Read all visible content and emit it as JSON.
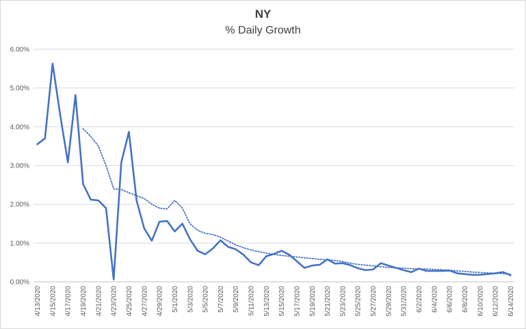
{
  "chart_data": {
    "type": "line",
    "title": "NY",
    "subtitle": "% Daily Growth",
    "xlabel": "",
    "ylabel": "",
    "ylim": [
      0,
      0.06
    ],
    "y_ticks": [
      "0.00%",
      "1.00%",
      "2.00%",
      "3.00%",
      "4.00%",
      "5.00%",
      "6.00%"
    ],
    "x_tick_labels": [
      "4/13/2020",
      "4/15/2020",
      "4/17/2020",
      "4/19/2020",
      "4/21/2020",
      "4/23/2020",
      "4/25/2020",
      "4/27/2020",
      "4/29/2020",
      "5/1/2020",
      "5/3/2020",
      "5/5/2020",
      "5/7/2020",
      "5/9/2020",
      "5/11/2020",
      "5/13/2020",
      "5/15/2020",
      "5/17/2020",
      "5/19/2020",
      "5/21/2020",
      "5/23/2020",
      "5/25/2020",
      "5/27/2020",
      "5/29/2020",
      "5/31/2020",
      "6/2/2020",
      "6/4/2020",
      "6/6/2020",
      "6/8/2020",
      "6/10/2020",
      "6/12/2020",
      "6/14/2020"
    ],
    "x": [
      "4/13/2020",
      "4/14/2020",
      "4/15/2020",
      "4/16/2020",
      "4/17/2020",
      "4/18/2020",
      "4/19/2020",
      "4/20/2020",
      "4/21/2020",
      "4/22/2020",
      "4/23/2020",
      "4/24/2020",
      "4/25/2020",
      "4/26/2020",
      "4/27/2020",
      "4/28/2020",
      "4/29/2020",
      "4/30/2020",
      "5/1/2020",
      "5/2/2020",
      "5/3/2020",
      "5/4/2020",
      "5/5/2020",
      "5/6/2020",
      "5/7/2020",
      "5/8/2020",
      "5/9/2020",
      "5/10/2020",
      "5/11/2020",
      "5/12/2020",
      "5/13/2020",
      "5/14/2020",
      "5/15/2020",
      "5/16/2020",
      "5/17/2020",
      "5/18/2020",
      "5/19/2020",
      "5/20/2020",
      "5/21/2020",
      "5/22/2020",
      "5/23/2020",
      "5/24/2020",
      "5/25/2020",
      "5/26/2020",
      "5/27/2020",
      "5/28/2020",
      "5/29/2020",
      "5/30/2020",
      "5/31/2020",
      "6/1/2020",
      "6/2/2020",
      "6/3/2020",
      "6/4/2020",
      "6/5/2020",
      "6/6/2020",
      "6/7/2020",
      "6/8/2020",
      "6/9/2020",
      "6/10/2020",
      "6/11/2020",
      "6/12/2020",
      "6/13/2020",
      "6/14/2020"
    ],
    "series": [
      {
        "style": "solid",
        "color": "#4472c4",
        "values": [
          0.0355,
          0.037,
          0.0563,
          0.043,
          0.0308,
          0.0482,
          0.0252,
          0.0212,
          0.021,
          0.019,
          0.0006,
          0.0308,
          0.0387,
          0.021,
          0.0138,
          0.0106,
          0.0155,
          0.0157,
          0.013,
          0.015,
          0.011,
          0.008,
          0.0071,
          0.0086,
          0.0107,
          0.009,
          0.0084,
          0.007,
          0.005,
          0.0043,
          0.0066,
          0.0072,
          0.008,
          0.007,
          0.0053,
          0.0036,
          0.0042,
          0.0044,
          0.0058,
          0.0047,
          0.0048,
          0.0043,
          0.0035,
          0.003,
          0.0032,
          0.0048,
          0.0042,
          0.0036,
          0.003,
          0.0025,
          0.0034,
          0.0028,
          0.0028,
          0.0028,
          0.0029,
          0.0022,
          0.002,
          0.0018,
          0.0018,
          0.002,
          0.0022,
          0.0025,
          0.0017
        ]
      },
      {
        "style": "dotted",
        "color": "#4472c4",
        "values": [
          null,
          null,
          null,
          null,
          null,
          null,
          0.0395,
          0.0375,
          0.035,
          0.03,
          0.024,
          0.0238,
          0.023,
          0.0222,
          0.0215,
          0.02,
          0.019,
          0.0188,
          0.021,
          0.019,
          0.015,
          0.0133,
          0.0125,
          0.0122,
          0.0115,
          0.0105,
          0.0095,
          0.0088,
          0.0082,
          0.0078,
          0.0074,
          0.0071,
          0.0068,
          0.0066,
          0.0064,
          0.0062,
          0.006,
          0.0058,
          0.0057,
          0.0055,
          0.0052,
          0.0048,
          0.0045,
          0.0043,
          0.0041,
          0.0039,
          0.0037,
          0.0036,
          0.0035,
          0.0034,
          0.0033,
          0.0033,
          0.0032,
          0.0031,
          0.003,
          0.0028,
          0.0027,
          0.0025,
          0.0024,
          0.0023,
          0.0022,
          0.0021,
          0.002
        ]
      }
    ],
    "grid": true,
    "legend": "none"
  }
}
